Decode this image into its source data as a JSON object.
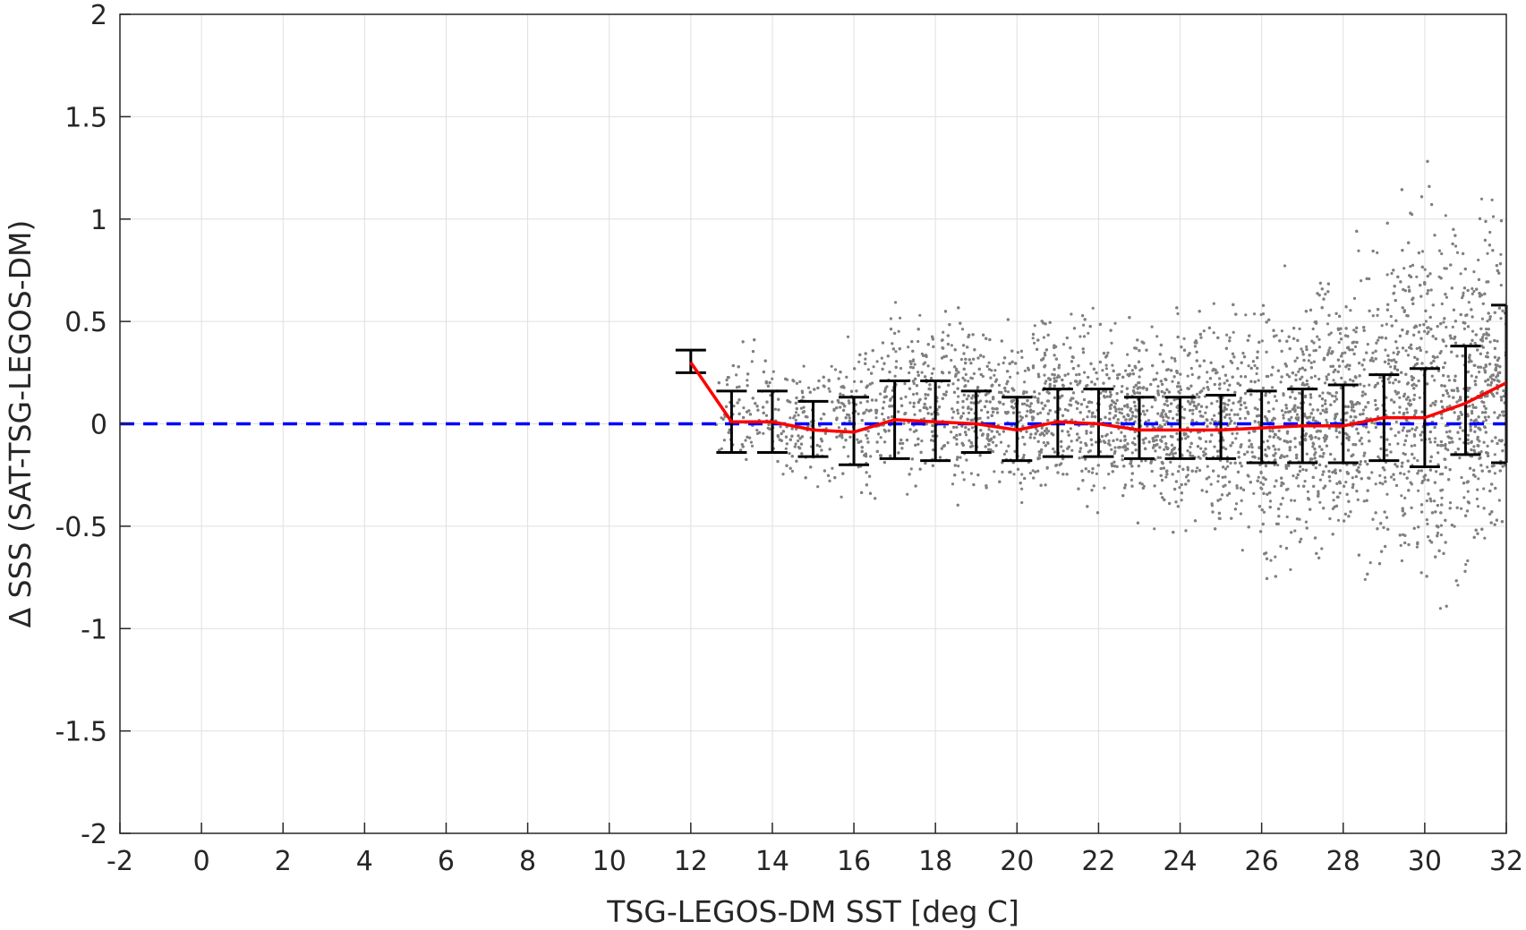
{
  "chart_data": {
    "type": "scatter",
    "title": "",
    "xlabel": "TSG-LEGOS-DM SST [deg C]",
    "ylabel": "Δ SSS (SAT-TSG-LEGOS-DM)",
    "xlim": [
      -2,
      32
    ],
    "ylim": [
      -2,
      2
    ],
    "x_ticks": [
      -2,
      0,
      2,
      4,
      6,
      8,
      10,
      12,
      14,
      16,
      18,
      20,
      22,
      24,
      26,
      28,
      30,
      32
    ],
    "y_ticks": [
      -2,
      -1.5,
      -1,
      -0.5,
      0,
      0.5,
      1,
      1.5,
      2
    ],
    "x_tick_labels": [
      "-2",
      "0",
      "2",
      "4",
      "6",
      "8",
      "10",
      "12",
      "14",
      "16",
      "18",
      "20",
      "22",
      "24",
      "26",
      "28",
      "30",
      "32"
    ],
    "y_tick_labels": [
      "-2",
      "-1.5",
      "-1",
      "-0.5",
      "0",
      "0.5",
      "1",
      "1.5",
      "2"
    ],
    "grid": true,
    "legend": "none",
    "colors": {
      "scatter": "#808080",
      "mean_line": "#ff0000",
      "zero_line": "#0000ff",
      "error_bars": "#000000",
      "grid": "#e0e0e0",
      "axes": "#262626"
    },
    "scatter_envelope": {
      "description_x_range": [
        12.5,
        32
      ],
      "x": [
        13,
        14,
        15,
        16,
        17,
        18,
        19,
        20,
        21,
        22,
        23,
        24,
        25,
        26,
        27,
        28,
        29,
        30,
        31,
        32
      ],
      "upper": [
        0.45,
        0.4,
        0.35,
        0.45,
        0.6,
        0.65,
        0.55,
        0.55,
        0.6,
        0.6,
        0.55,
        0.6,
        0.6,
        0.75,
        0.8,
        0.9,
        1.1,
        1.3,
        1.2,
        1.1
      ],
      "lower": [
        -0.2,
        -0.3,
        -0.35,
        -0.4,
        -0.35,
        -0.4,
        -0.4,
        -0.45,
        -0.4,
        -0.45,
        -0.5,
        -0.55,
        -0.6,
        -0.8,
        -0.7,
        -0.75,
        -0.85,
        -1.0,
        -0.9,
        -0.75
      ]
    },
    "series": [
      {
        "type": "line",
        "x": [
          12,
          13,
          14,
          15,
          16,
          17,
          18,
          19,
          20,
          21,
          22,
          23,
          24,
          25,
          26,
          27,
          28,
          29,
          30,
          31,
          32
        ],
        "values": [
          0.3,
          0.01,
          0.01,
          -0.03,
          -0.04,
          0.02,
          0.01,
          0.0,
          -0.03,
          0.01,
          0.0,
          -0.03,
          -0.03,
          -0.03,
          -0.02,
          -0.01,
          -0.01,
          0.03,
          0.03,
          0.1,
          0.2
        ]
      },
      {
        "type": "errorbar",
        "x": [
          12,
          13,
          14,
          15,
          16,
          17,
          18,
          19,
          20,
          21,
          22,
          23,
          24,
          25,
          26,
          27,
          28,
          29,
          30,
          31,
          32
        ],
        "upper": [
          0.36,
          0.16,
          0.16,
          0.11,
          0.13,
          0.21,
          0.21,
          0.16,
          0.13,
          0.17,
          0.17,
          0.13,
          0.13,
          0.14,
          0.16,
          0.17,
          0.19,
          0.24,
          0.27,
          0.38,
          0.58
        ],
        "lower": [
          0.25,
          -0.14,
          -0.14,
          -0.16,
          -0.2,
          -0.17,
          -0.18,
          -0.14,
          -0.18,
          -0.16,
          -0.16,
          -0.17,
          -0.17,
          -0.17,
          -0.19,
          -0.19,
          -0.19,
          -0.18,
          -0.21,
          -0.15,
          -0.19
        ]
      },
      {
        "type": "reference-line",
        "value": 0
      }
    ]
  }
}
